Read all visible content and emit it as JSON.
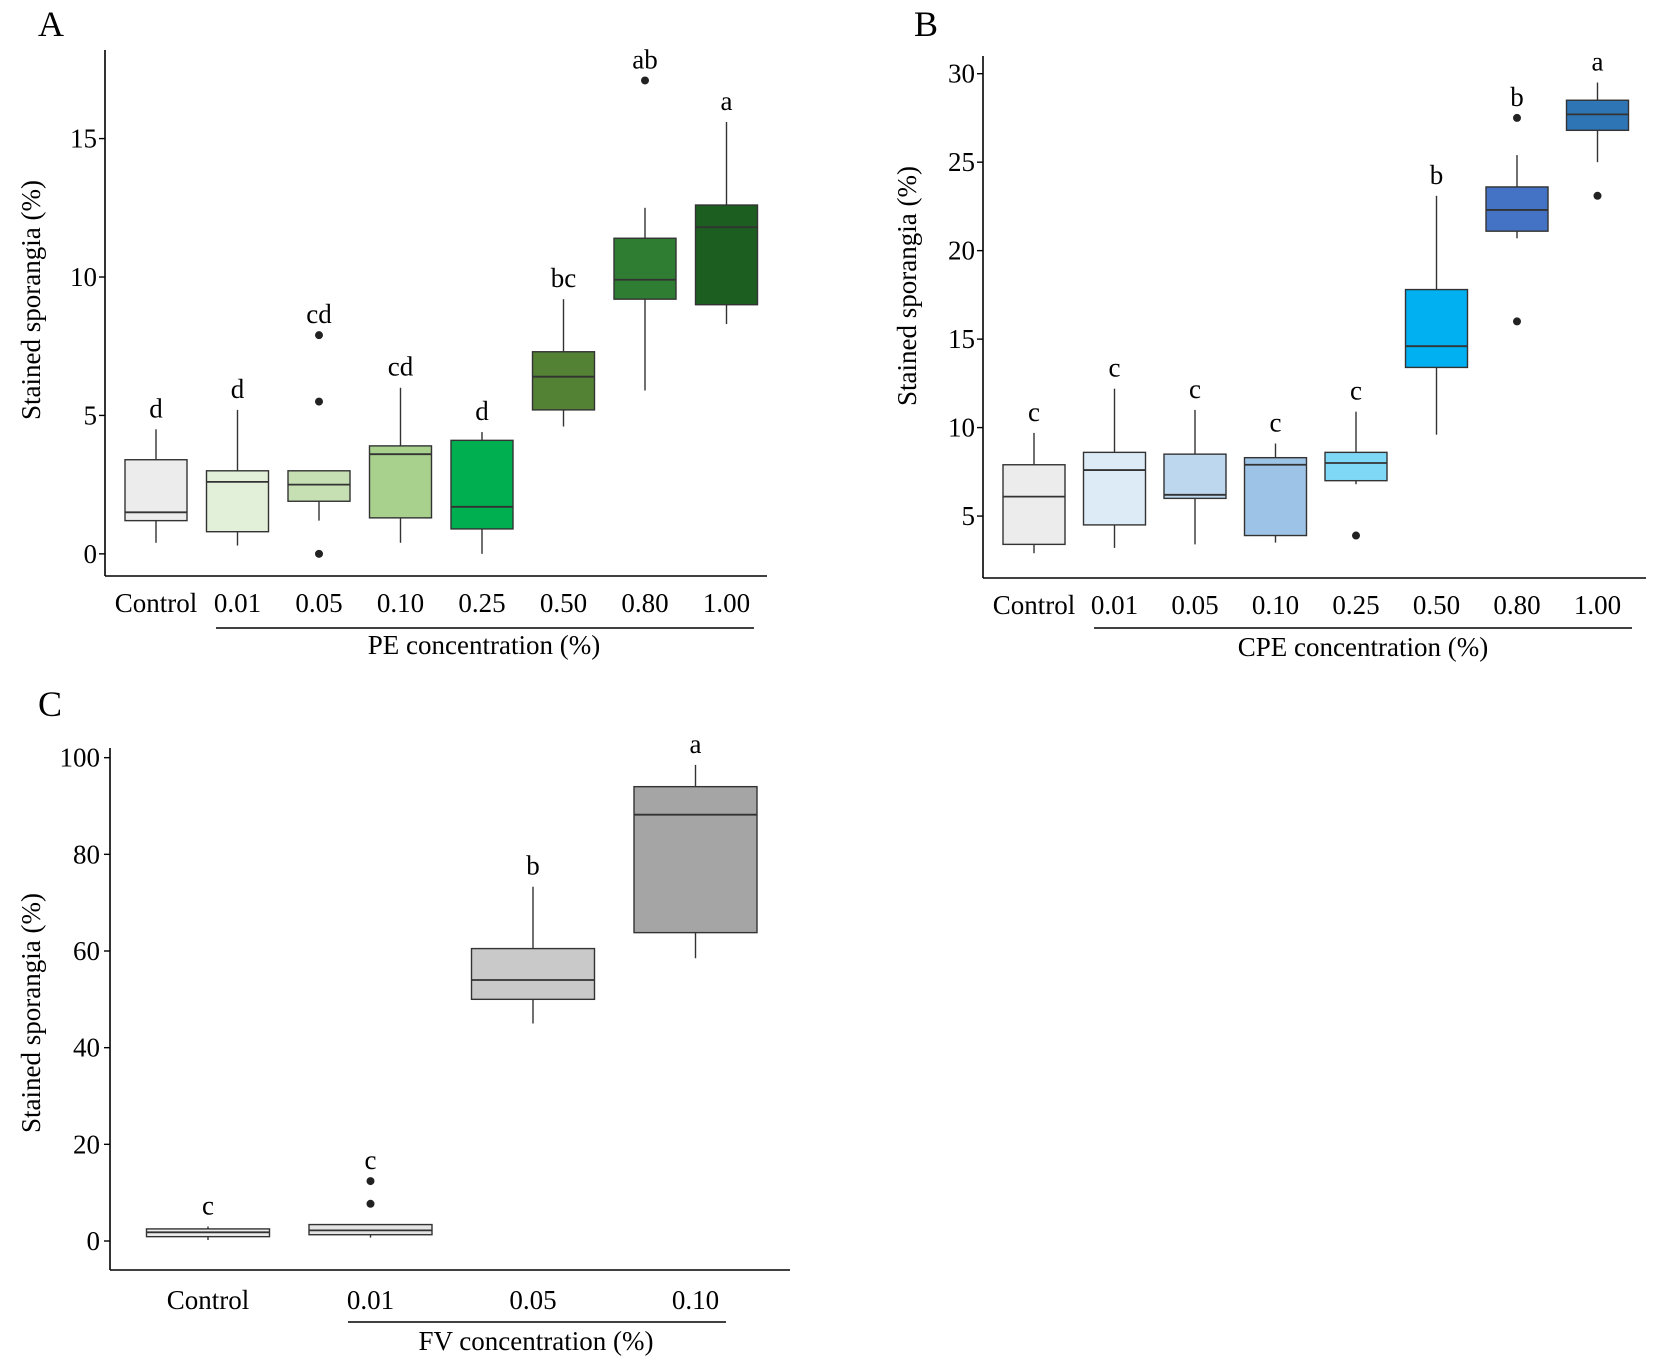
{
  "chart_data": [
    {
      "type": "box",
      "panel_label": "A",
      "xlabel": "PE concentration (%)",
      "ylabel": "Stained sporangia (%)",
      "ylim": [
        -0.8,
        18.2
      ],
      "yticks": [
        "0",
        "5",
        "10",
        "15"
      ],
      "categories": [
        "Control",
        "0.01",
        "0.05",
        "0.10",
        "0.25",
        "0.50",
        "0.80",
        "1.00"
      ],
      "colors": [
        "#ececec",
        "#e2efd9",
        "#c6e0b4",
        "#a9d18e",
        "#00b050",
        "#548235",
        "#2e7d32",
        "#1b5e20"
      ],
      "boxes": [
        {
          "whisker_low": 0.4,
          "q1": 1.2,
          "median": 1.5,
          "q3": 3.4,
          "whisker_high": 4.5,
          "outliers": [],
          "letter": "d"
        },
        {
          "whisker_low": 0.3,
          "q1": 0.8,
          "median": 2.6,
          "q3": 3.0,
          "whisker_high": 5.2,
          "outliers": [],
          "letter": "d"
        },
        {
          "whisker_low": 1.2,
          "q1": 1.9,
          "median": 2.5,
          "q3": 3.0,
          "whisker_high": 3.0,
          "outliers": [
            0.0,
            5.5,
            7.9
          ],
          "letter": "cd"
        },
        {
          "whisker_low": 0.4,
          "q1": 1.3,
          "median": 3.6,
          "q3": 3.9,
          "whisker_high": 6.0,
          "outliers": [],
          "letter": "cd"
        },
        {
          "whisker_low": 0.0,
          "q1": 0.9,
          "median": 1.7,
          "q3": 4.1,
          "whisker_high": 4.4,
          "outliers": [],
          "letter": "d"
        },
        {
          "whisker_low": 4.6,
          "q1": 5.2,
          "median": 6.4,
          "q3": 7.3,
          "whisker_high": 9.2,
          "outliers": [],
          "letter": "bc"
        },
        {
          "whisker_low": 5.9,
          "q1": 9.2,
          "median": 9.9,
          "q3": 11.4,
          "whisker_high": 12.5,
          "outliers": [
            17.1
          ],
          "letter": "ab"
        },
        {
          "whisker_low": 8.3,
          "q1": 9.0,
          "median": 11.8,
          "q3": 12.6,
          "whisker_high": 15.6,
          "outliers": [],
          "letter": "a"
        }
      ]
    },
    {
      "type": "box",
      "panel_label": "B",
      "xlabel": "CPE concentration (%)",
      "ylabel": "Stained sporangia (%)",
      "ylim": [
        1.5,
        31
      ],
      "yticks": [
        "5",
        "10",
        "15",
        "20",
        "25",
        "30"
      ],
      "categories": [
        "Control",
        "0.01",
        "0.05",
        "0.10",
        "0.25",
        "0.50",
        "0.80",
        "1.00"
      ],
      "colors": [
        "#ececec",
        "#ddebf7",
        "#bdd7ee",
        "#9dc3e6",
        "#7fd8f5",
        "#00b0f0",
        "#4472c4",
        "#2e75b6"
      ],
      "boxes": [
        {
          "whisker_low": 2.9,
          "q1": 3.4,
          "median": 6.1,
          "q3": 7.9,
          "whisker_high": 9.7,
          "outliers": [],
          "letter": "c"
        },
        {
          "whisker_low": 3.2,
          "q1": 4.5,
          "median": 7.6,
          "q3": 8.6,
          "whisker_high": 12.2,
          "outliers": [],
          "letter": "c"
        },
        {
          "whisker_low": 3.4,
          "q1": 6.0,
          "median": 6.2,
          "q3": 8.5,
          "whisker_high": 11.0,
          "outliers": [],
          "letter": "c"
        },
        {
          "whisker_low": 3.5,
          "q1": 3.9,
          "median": 7.9,
          "q3": 8.3,
          "whisker_high": 9.1,
          "outliers": [],
          "letter": "c"
        },
        {
          "whisker_low": 6.8,
          "q1": 7.0,
          "median": 8.0,
          "q3": 8.6,
          "whisker_high": 10.9,
          "outliers": [
            3.9
          ],
          "letter": "c"
        },
        {
          "whisker_low": 9.6,
          "q1": 13.4,
          "median": 14.6,
          "q3": 17.8,
          "whisker_high": 23.1,
          "outliers": [],
          "letter": "b"
        },
        {
          "whisker_low": 20.7,
          "q1": 21.1,
          "median": 22.3,
          "q3": 23.6,
          "whisker_high": 25.4,
          "outliers": [
            16.0,
            27.5
          ],
          "letter": "b"
        },
        {
          "whisker_low": 25.0,
          "q1": 26.8,
          "median": 27.7,
          "q3": 28.5,
          "whisker_high": 29.5,
          "outliers": [
            23.1
          ],
          "letter": "a"
        }
      ]
    },
    {
      "type": "box",
      "panel_label": "C",
      "xlabel": "FV concentration (%)",
      "ylabel": "Stained sporangia (%)",
      "ylim": [
        -6,
        102
      ],
      "yticks": [
        "0",
        "20",
        "40",
        "60",
        "80",
        "100"
      ],
      "categories": [
        "Control",
        "0.01",
        "0.05",
        "0.10"
      ],
      "colors": [
        "#efefef",
        "#e4e4e4",
        "#c9c9c9",
        "#a5a5a5"
      ],
      "boxes": [
        {
          "whisker_low": 0.2,
          "q1": 0.9,
          "median": 1.8,
          "q3": 2.5,
          "whisker_high": 3.0,
          "outliers": [],
          "letter": "c"
        },
        {
          "whisker_low": 0.7,
          "q1": 1.3,
          "median": 2.2,
          "q3": 3.4,
          "whisker_high": 3.4,
          "outliers": [
            7.7,
            12.4
          ],
          "letter": "c"
        },
        {
          "whisker_low": 45.0,
          "q1": 50.0,
          "median": 54.0,
          "q3": 60.5,
          "whisker_high": 73.3,
          "outliers": [],
          "letter": "b"
        },
        {
          "whisker_low": 58.5,
          "q1": 63.8,
          "median": 88.2,
          "q3": 94.0,
          "whisker_high": 98.5,
          "outliers": [],
          "letter": "a"
        }
      ]
    }
  ]
}
